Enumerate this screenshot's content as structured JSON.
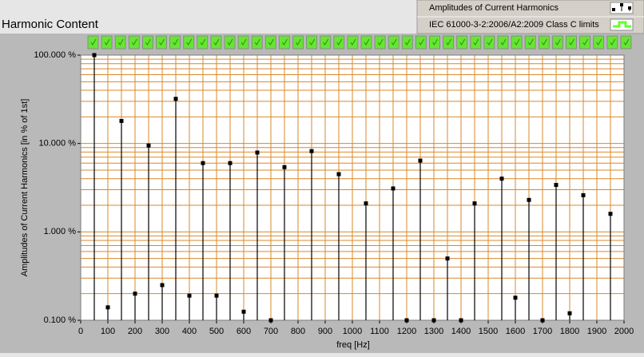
{
  "chart_data": {
    "type": "stem",
    "title": "Harmonic Content",
    "x_label": "freq [Hz]",
    "y_label": "Amplitudes of Current Harmonics [in % of 1st]",
    "x": [
      50,
      100,
      150,
      200,
      250,
      300,
      350,
      400,
      450,
      500,
      550,
      600,
      650,
      700,
      750,
      800,
      850,
      900,
      950,
      1000,
      1050,
      1100,
      1150,
      1200,
      1250,
      1300,
      1350,
      1400,
      1450,
      1500,
      1550,
      1600,
      1650,
      1700,
      1750,
      1800,
      1850,
      1900,
      1950
    ],
    "series": [
      {
        "name": "Amplitudes of Current Harmonics",
        "color": "#000000",
        "values": [
          100,
          0.14,
          18,
          0.2,
          9.5,
          0.25,
          32,
          0.19,
          6.0,
          0.19,
          6.0,
          0.125,
          7.9,
          0.1,
          5.4,
          null,
          8.2,
          null,
          4.5,
          null,
          2.1,
          null,
          3.1,
          0.1,
          6.4,
          0.1,
          0.5,
          0.1,
          2.1,
          null,
          4.0,
          0.18,
          2.3,
          0.1,
          3.4,
          0.12,
          2.6,
          null,
          1.6
        ]
      }
    ],
    "legend": [
      {
        "name": "Amplitudes of Current Harmonics",
        "color": "#000000"
      },
      {
        "name": "IEC 61000-3-2:2006/A2:2009 Class C limits",
        "color": "#66ff33"
      }
    ],
    "xlim": [
      0,
      2000
    ],
    "xticks": [
      0,
      100,
      200,
      300,
      400,
      500,
      600,
      700,
      800,
      900,
      1000,
      1100,
      1200,
      1300,
      1400,
      1500,
      1600,
      1700,
      1800,
      1900,
      2000
    ],
    "ylim": [
      0.1,
      100
    ],
    "log_y": true,
    "yticks": [
      {
        "value": 0.1,
        "label": "0.100 %"
      },
      {
        "value": 1,
        "label": "1.000 %"
      },
      {
        "value": 10,
        "label": "10.000 %"
      },
      {
        "value": 100,
        "label": "100.000 %"
      }
    ],
    "grid": true,
    "grid_color": "#d9892a"
  }
}
